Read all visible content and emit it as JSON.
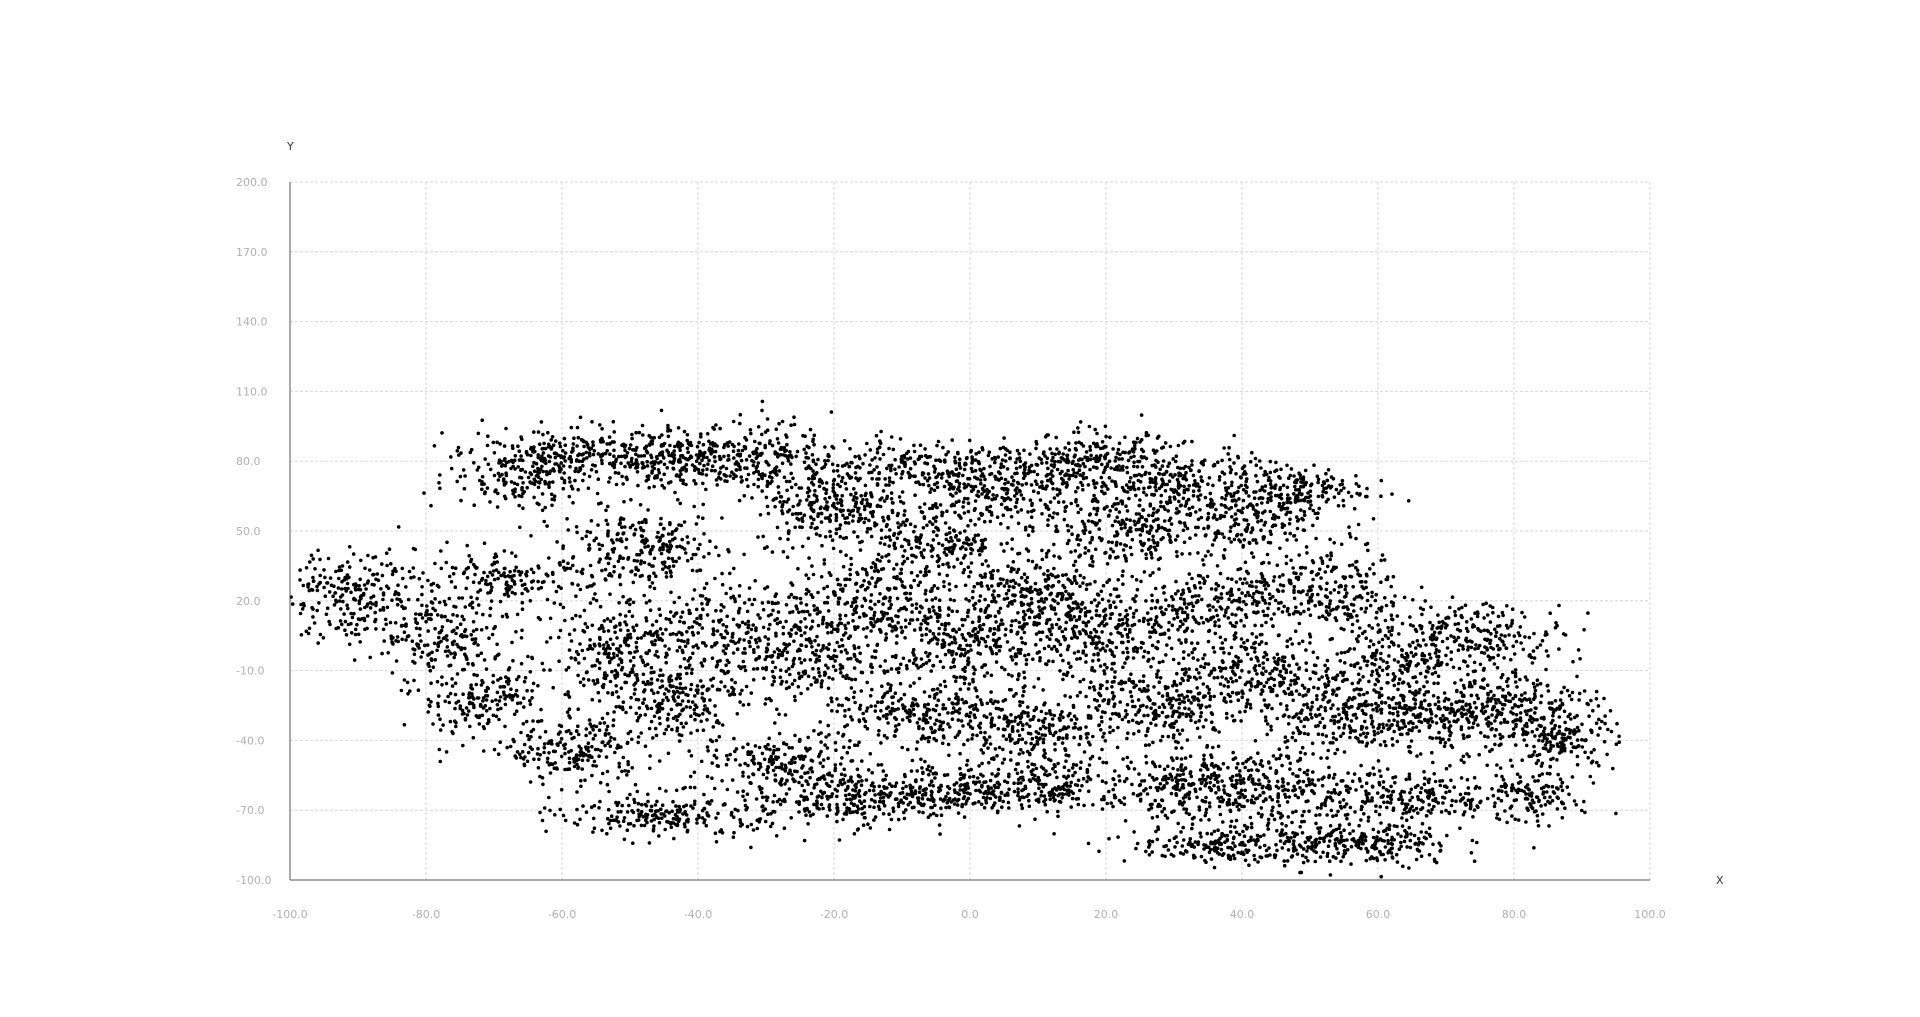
{
  "chart_data": {
    "type": "scatter",
    "title": "",
    "xlabel": "X",
    "ylabel": "Y",
    "xlim": [
      -100,
      100
    ],
    "ylim": [
      -100,
      200
    ],
    "x_ticks": [
      -100,
      -80,
      -60,
      -40,
      -20,
      0,
      20,
      40,
      60,
      80,
      100
    ],
    "y_ticks": [
      -100,
      -70,
      -40,
      -10,
      20,
      50,
      80,
      110,
      140,
      170,
      200
    ],
    "x_tick_labels": [
      "-100.0",
      "-80.0",
      "-60.0",
      "-40.0",
      "-20.0",
      "0.0",
      "20.0",
      "40.0",
      "60.0",
      "80.0",
      "100.0"
    ],
    "y_tick_labels": [
      "-100.0",
      "-70.0",
      "-40.0",
      "-10.0",
      "20.0",
      "50.0",
      "80.0",
      "110.0",
      "140.0",
      "170.0",
      "200.0"
    ],
    "grid": true,
    "point_color": "#000000",
    "clusters": [
      {
        "cx": -90,
        "cy": 22,
        "sx": 6,
        "sy": 10,
        "n": 260
      },
      {
        "cx": -78,
        "cy": 5,
        "sx": 5,
        "sy": 8,
        "n": 160
      },
      {
        "cx": -72,
        "cy": -22,
        "sx": 5,
        "sy": 9,
        "n": 200
      },
      {
        "cx": -68,
        "cy": 28,
        "sx": 6,
        "sy": 6,
        "n": 170
      },
      {
        "cx": -65,
        "cy": 75,
        "sx": 6,
        "sy": 8,
        "n": 200
      },
      {
        "cx": -58,
        "cy": -45,
        "sx": 5,
        "sy": 7,
        "n": 200
      },
      {
        "cx": -55,
        "cy": 82,
        "sx": 8,
        "sy": 6,
        "n": 240
      },
      {
        "cx": -52,
        "cy": 0,
        "sx": 5,
        "sy": 8,
        "n": 180
      },
      {
        "cx": -48,
        "cy": 42,
        "sx": 6,
        "sy": 8,
        "n": 250
      },
      {
        "cx": -45,
        "cy": -22,
        "sx": 6,
        "sy": 9,
        "n": 260
      },
      {
        "cx": -44,
        "cy": -72,
        "sx": 8,
        "sy": 5,
        "n": 240
      },
      {
        "cx": -42,
        "cy": 80,
        "sx": 6,
        "sy": 6,
        "n": 200
      },
      {
        "cx": -38,
        "cy": 10,
        "sx": 7,
        "sy": 9,
        "n": 240
      },
      {
        "cx": -30,
        "cy": 82,
        "sx": 5,
        "sy": 8,
        "n": 190
      },
      {
        "cx": -28,
        "cy": -50,
        "sx": 6,
        "sy": 6,
        "n": 180
      },
      {
        "cx": -25,
        "cy": -5,
        "sx": 6,
        "sy": 10,
        "n": 260
      },
      {
        "cx": -20,
        "cy": 60,
        "sx": 6,
        "sy": 8,
        "n": 260
      },
      {
        "cx": -18,
        "cy": -65,
        "sx": 6,
        "sy": 6,
        "n": 240
      },
      {
        "cx": -15,
        "cy": 20,
        "sx": 6,
        "sy": 10,
        "n": 270
      },
      {
        "cx": -10,
        "cy": 78,
        "sx": 7,
        "sy": 6,
        "n": 200
      },
      {
        "cx": -8,
        "cy": -30,
        "sx": 7,
        "sy": 8,
        "n": 260
      },
      {
        "cx": -5,
        "cy": 45,
        "sx": 6,
        "sy": 8,
        "n": 230
      },
      {
        "cx": -3,
        "cy": -62,
        "sx": 6,
        "sy": 6,
        "n": 210
      },
      {
        "cx": 0,
        "cy": 0,
        "sx": 6,
        "sy": 10,
        "n": 300
      },
      {
        "cx": 5,
        "cy": 70,
        "sx": 6,
        "sy": 8,
        "n": 260
      },
      {
        "cx": 8,
        "cy": 22,
        "sx": 6,
        "sy": 8,
        "n": 250
      },
      {
        "cx": 10,
        "cy": -35,
        "sx": 7,
        "sy": 8,
        "n": 260
      },
      {
        "cx": 12,
        "cy": -60,
        "sx": 6,
        "sy": 6,
        "n": 200
      },
      {
        "cx": 18,
        "cy": 80,
        "sx": 6,
        "sy": 6,
        "n": 230
      },
      {
        "cx": 20,
        "cy": 5,
        "sx": 6,
        "sy": 10,
        "n": 280
      },
      {
        "cx": 22,
        "cy": 50,
        "sx": 7,
        "sy": 8,
        "n": 260
      },
      {
        "cx": 28,
        "cy": -25,
        "sx": 6,
        "sy": 9,
        "n": 260
      },
      {
        "cx": 30,
        "cy": 72,
        "sx": 6,
        "sy": 7,
        "n": 220
      },
      {
        "cx": 32,
        "cy": -60,
        "sx": 6,
        "sy": 7,
        "n": 240
      },
      {
        "cx": 35,
        "cy": 20,
        "sx": 6,
        "sy": 8,
        "n": 240
      },
      {
        "cx": 38,
        "cy": -85,
        "sx": 7,
        "sy": 4,
        "n": 200
      },
      {
        "cx": 40,
        "cy": 55,
        "sx": 6,
        "sy": 8,
        "n": 240
      },
      {
        "cx": 42,
        "cy": -10,
        "sx": 6,
        "sy": 9,
        "n": 250
      },
      {
        "cx": 45,
        "cy": -60,
        "sx": 6,
        "sy": 8,
        "n": 230
      },
      {
        "cx": 48,
        "cy": 68,
        "sx": 5,
        "sy": 5,
        "n": 150
      },
      {
        "cx": 52,
        "cy": 25,
        "sx": 6,
        "sy": 10,
        "n": 260
      },
      {
        "cx": 55,
        "cy": -30,
        "sx": 6,
        "sy": 8,
        "n": 250
      },
      {
        "cx": 58,
        "cy": -85,
        "sx": 7,
        "sy": 5,
        "n": 240
      },
      {
        "cx": 62,
        "cy": -5,
        "sx": 6,
        "sy": 9,
        "n": 240
      },
      {
        "cx": 65,
        "cy": -65,
        "sx": 7,
        "sy": 7,
        "n": 240
      },
      {
        "cx": 70,
        "cy": -30,
        "sx": 6,
        "sy": 7,
        "n": 220
      },
      {
        "cx": 76,
        "cy": 5,
        "sx": 6,
        "sy": 7,
        "n": 200
      },
      {
        "cx": 80,
        "cy": -25,
        "sx": 6,
        "sy": 8,
        "n": 200
      },
      {
        "cx": 82,
        "cy": -65,
        "sx": 4,
        "sy": 5,
        "n": 120
      },
      {
        "cx": 87,
        "cy": -40,
        "sx": 4,
        "sy": 6,
        "n": 150
      }
    ]
  }
}
